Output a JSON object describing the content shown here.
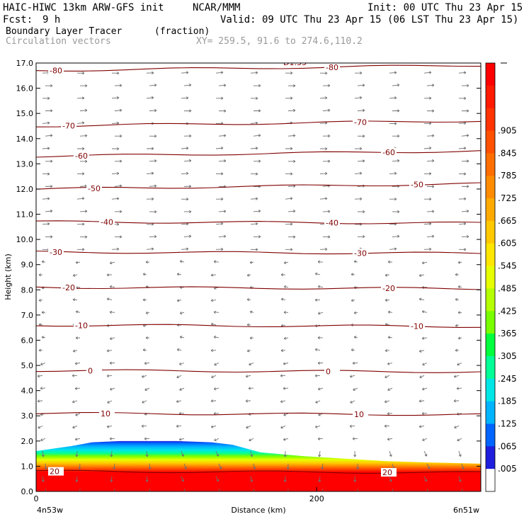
{
  "header": {
    "model": "HAIC-HIWC 13km ARW-GFS init",
    "org": "NCAR/MMM",
    "init": "Init: 00 UTC Thu 23 Apr 15",
    "fcst_label": "Fcst:",
    "fcst_value": "9 h",
    "valid": "Valid: 09 UTC Thu 23 Apr 15 (06 LST Thu 23 Apr 15)",
    "field": "Boundary Layer Tracer",
    "field_units": "(fraction)",
    "vectors": "Circulation vectors",
    "xy": "XY= 259.5, 91.6 to 274.6,110.2"
  },
  "chart_data": {
    "type": "heatmap",
    "title": "Boundary Layer Tracer",
    "units": "(fraction)",
    "xlabel": "Distance (km)",
    "ylabel": "Height (km)",
    "x_left_label": "4n53w",
    "x_right_label": "6n51w",
    "xlim": [
      0,
      317
    ],
    "ylim": [
      0,
      17
    ],
    "x_ticks": [
      0,
      200
    ],
    "y_ticks": [
      0.0,
      1.0,
      2.0,
      3.0,
      4.0,
      5.0,
      6.0,
      7.0,
      8.0,
      9.0,
      10.0,
      11.0,
      12.0,
      13.0,
      14.0,
      15.0,
      16.0,
      17.0
    ],
    "colorbar_labels": [
      ".905",
      ".845",
      ".785",
      ".725",
      ".665",
      ".605",
      ".545",
      ".485",
      ".425",
      ".365",
      ".305",
      ".245",
      ".185",
      ".125",
      ".065",
      ".005"
    ],
    "colorbar_colors": [
      "#ff0000",
      "#ff1a00",
      "#ff3300",
      "#ff5000",
      "#ff6e00",
      "#ff8c00",
      "#ffaa00",
      "#ffc800",
      "#ffe600",
      "#e6ff00",
      "#b4ff00",
      "#78ff00",
      "#00ff3c",
      "#00ff96",
      "#00e6e6",
      "#00b4ff",
      "#0064ff",
      "#1e1edc",
      "#ffffff"
    ],
    "tracer_top_profile": {
      "x": [
        0,
        15,
        25,
        40,
        60,
        100,
        125,
        140,
        160,
        190,
        220,
        250,
        280,
        317
      ],
      "z": [
        1.6,
        1.72,
        1.8,
        1.95,
        2.0,
        2.0,
        1.95,
        1.85,
        1.55,
        1.4,
        1.3,
        1.2,
        1.15,
        1.1
      ]
    },
    "temperature_contours": [
      {
        "label": "-80",
        "z": 16.7
      },
      {
        "label": "-70",
        "z": 14.5
      },
      {
        "label": "-60",
        "z": 13.3
      },
      {
        "label": "-50",
        "z": 12.0
      },
      {
        "label": "-40",
        "z": 10.7
      },
      {
        "label": "-30",
        "z": 9.5
      },
      {
        "label": "-20",
        "z": 8.1
      },
      {
        "label": "-10",
        "z": 6.6
      },
      {
        "label": "0",
        "z": 4.8
      },
      {
        "label": "10",
        "z": 3.1
      },
      {
        "label": "20",
        "z": 0.8
      }
    ],
    "contour_label_top": "D1.33"
  }
}
